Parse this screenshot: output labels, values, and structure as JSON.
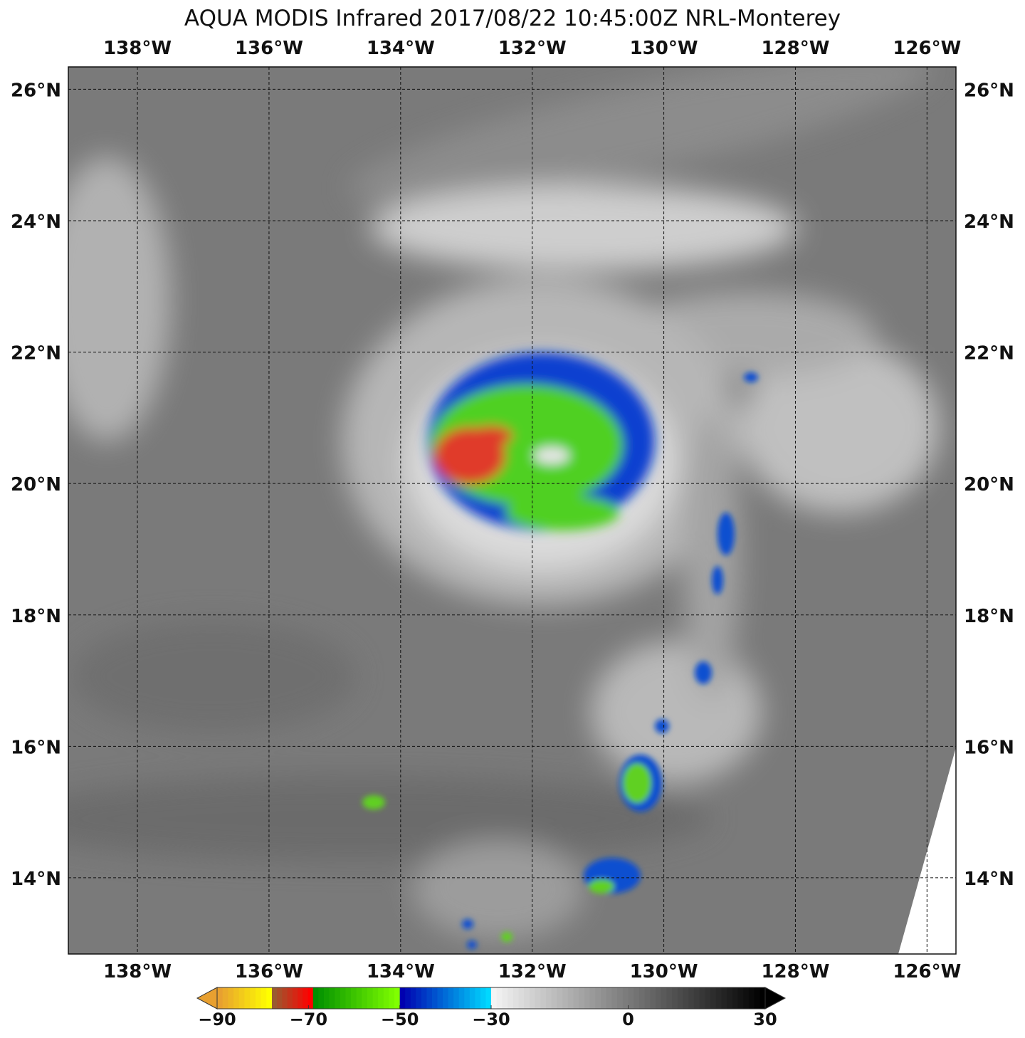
{
  "title": "AQUA MODIS Infrared 2017/08/22 10:45:00Z NRL-Monterey",
  "map": {
    "lon_range": [
      -139.05,
      -125.56
    ],
    "lat_range": [
      12.84,
      26.34
    ],
    "lon_ticks": [
      {
        "value": -138,
        "label": "138°W"
      },
      {
        "value": -136,
        "label": "136°W"
      },
      {
        "value": -134,
        "label": "134°W"
      },
      {
        "value": -132,
        "label": "132°W"
      },
      {
        "value": -130,
        "label": "130°W"
      },
      {
        "value": -128,
        "label": "128°W"
      },
      {
        "value": -126,
        "label": "126°W"
      }
    ],
    "lat_ticks": [
      {
        "value": 26,
        "label": "26°N"
      },
      {
        "value": 24,
        "label": "24°N"
      },
      {
        "value": 22,
        "label": "22°N"
      },
      {
        "value": 20,
        "label": "20°N"
      },
      {
        "value": 18,
        "label": "18°N"
      },
      {
        "value": 16,
        "label": "16°N"
      },
      {
        "value": 14,
        "label": "14°N"
      }
    ],
    "grid": true,
    "background_color": "#7a7a7a"
  },
  "colorbar": {
    "range": [
      -90,
      30
    ],
    "extend": "both",
    "ticks": [
      {
        "value": -90,
        "label": "−90"
      },
      {
        "value": -70,
        "label": "−70"
      },
      {
        "value": -50,
        "label": "−50"
      },
      {
        "value": -30,
        "label": "−30"
      },
      {
        "value": 0,
        "label": "0"
      },
      {
        "value": 30,
        "label": "30"
      }
    ],
    "segments": [
      {
        "from": -90,
        "to": -78,
        "colors": [
          "#e8a030",
          "#ffff00"
        ]
      },
      {
        "from": -78,
        "to": -69,
        "colors": [
          "#9a5a30",
          "#ff0000"
        ]
      },
      {
        "from": -69,
        "to": -50,
        "colors": [
          "#009000",
          "#80ff00"
        ]
      },
      {
        "from": -50,
        "to": -30,
        "colors": [
          "#0000b0",
          "#00d8ff"
        ]
      },
      {
        "from": -30,
        "to": 30,
        "colors": [
          "#f4f4f4",
          "#000000"
        ]
      }
    ],
    "low_color": "#e8a030",
    "high_color": "#000000"
  }
}
